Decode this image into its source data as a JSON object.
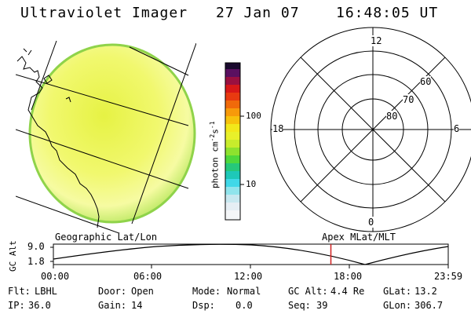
{
  "header": {
    "instrument": "Ultraviolet Imager",
    "date": "27 Jan 07",
    "time": "16:48:05 UT"
  },
  "colorbar": {
    "label": "photon cm",
    "label_exp1": "-2",
    "label_mid": "s",
    "label_exp2": "-1",
    "ticks": [
      "100",
      "10"
    ]
  },
  "polar_plot": {
    "mlt_labels": [
      "12",
      "18",
      "6",
      "0"
    ],
    "lat_labels": [
      "60",
      "70",
      "80"
    ]
  },
  "timeline": {
    "ylabel": "GC Alt",
    "yticks": [
      "9.0",
      "1.8"
    ],
    "left_label": "Geographic Lat/Lon",
    "right_label": "Apex MLat/MLT",
    "xticks": [
      "00:00",
      "06:00",
      "12:00",
      "18:00",
      "23:59"
    ],
    "marker_time_fraction": 0.7028
  },
  "status": {
    "row1": [
      {
        "label": "Flt:",
        "value": "LBHL"
      },
      {
        "label": "Door:",
        "value": "Open"
      },
      {
        "label": "Mode:",
        "value": "Normal"
      },
      {
        "label": "GC Alt:",
        "value": "4.4 Re"
      },
      {
        "label": "GLat:",
        "value": "13.2"
      }
    ],
    "row2": [
      {
        "label": "IP:",
        "value": "36.0"
      },
      {
        "label": "Gain:",
        "value": "14"
      },
      {
        "label": "Dsp:",
        "value": "0.0"
      },
      {
        "label": "Seq:",
        "value": "39"
      },
      {
        "label": "GLon:",
        "value": "306.7"
      }
    ]
  }
}
